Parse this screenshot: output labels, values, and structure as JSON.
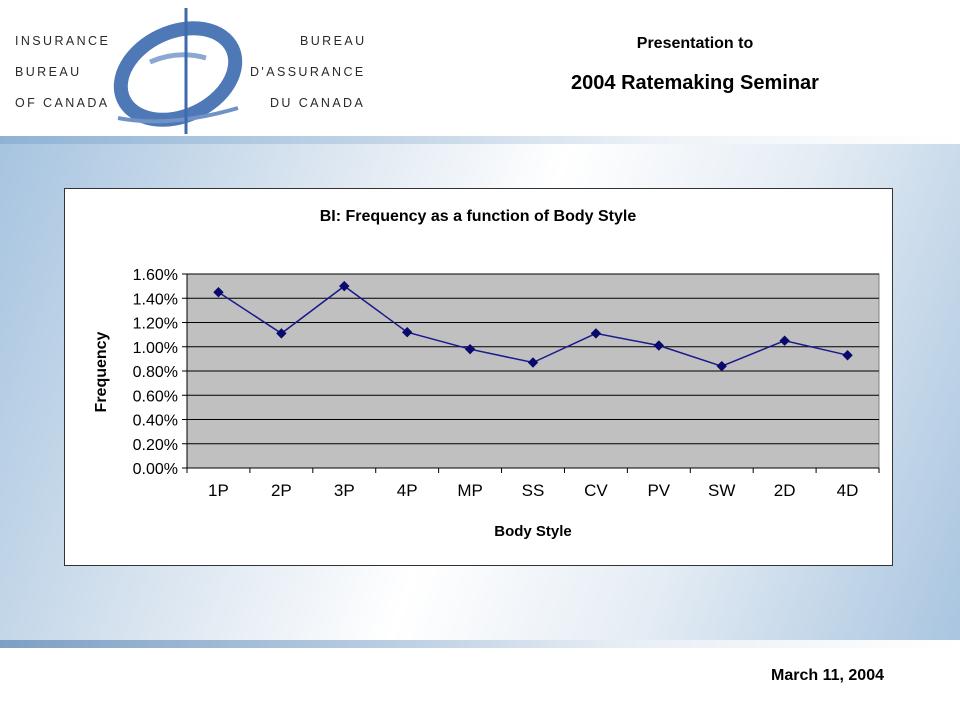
{
  "header": {
    "logo_lines": [
      {
        "left": "Insurance",
        "right": "Bureau"
      },
      {
        "left": "Bureau",
        "right": "d'assurance"
      },
      {
        "left": "of Canada",
        "right": "du Canada"
      }
    ],
    "presentation_line1": "Presentation to",
    "presentation_line2": "2004 Ratemaking Seminar"
  },
  "footer": {
    "date": "March 11, 2004"
  },
  "colors": {
    "plot_background": "#c0c0c0",
    "series_line": "#1a1a8c",
    "marker": "#0a0a6e",
    "logo_blue": "#4f79b6"
  },
  "chart_data": {
    "type": "line",
    "title": "BI: Frequency as a function of Body Style",
    "xlabel": "Body Style",
    "ylabel": "Frequency",
    "categories": [
      "1P",
      "2P",
      "3P",
      "4P",
      "MP",
      "SS",
      "CV",
      "PV",
      "SW",
      "2D",
      "4D"
    ],
    "series": [
      {
        "values": [
          0.0145,
          0.0111,
          0.015,
          0.0112,
          0.0098,
          0.0087,
          0.0111,
          0.0101,
          0.0084,
          0.0105,
          0.0093
        ]
      }
    ],
    "ylim": [
      0,
      0.016
    ],
    "yticks": [
      0,
      0.002,
      0.004,
      0.006,
      0.008,
      0.01,
      0.012,
      0.014,
      0.016
    ],
    "ytick_labels": [
      "0.00%",
      "0.20%",
      "0.40%",
      "0.60%",
      "0.80%",
      "1.00%",
      "1.20%",
      "1.40%",
      "1.60%"
    ],
    "grid": true,
    "marker": "diamond"
  }
}
